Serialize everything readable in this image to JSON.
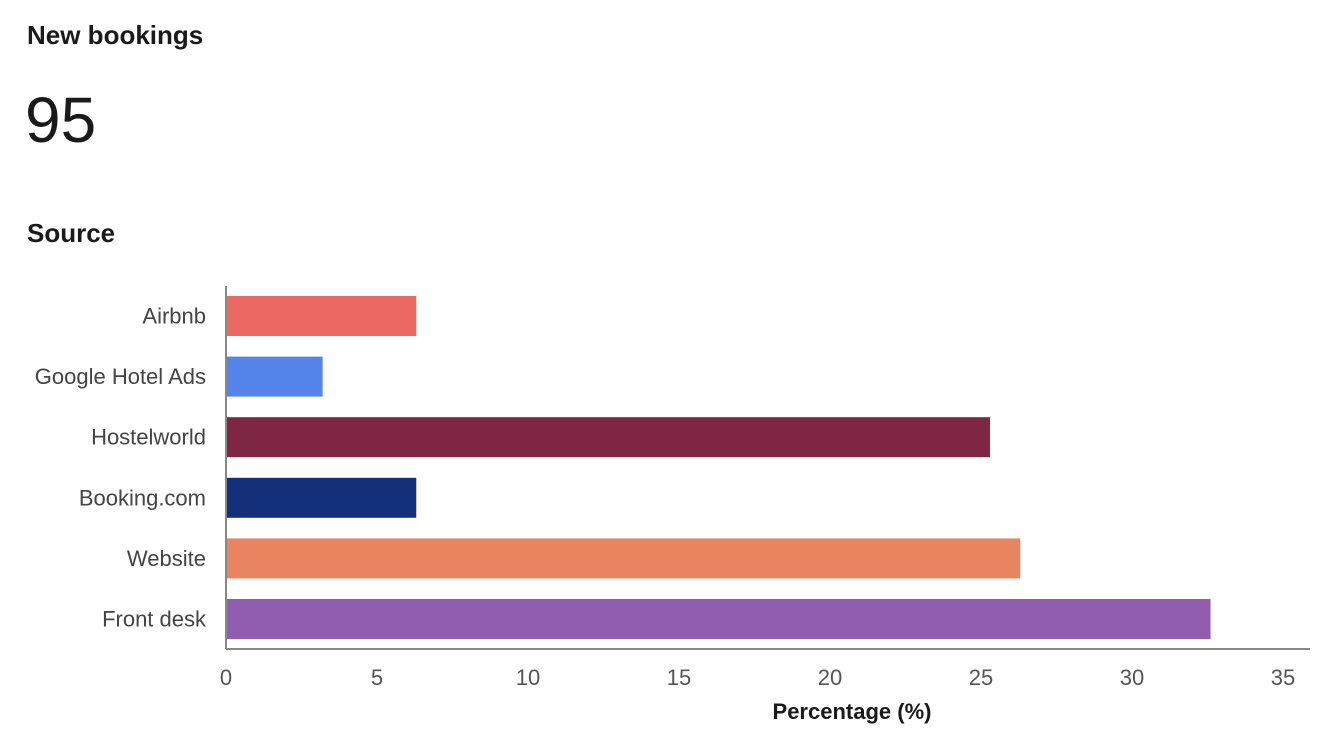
{
  "card": {
    "title": "New bookings",
    "value": "95",
    "section_title": "Source"
  },
  "chart_data": {
    "type": "bar",
    "orientation": "horizontal",
    "categories": [
      "Airbnb",
      "Google Hotel Ads",
      "Hostelworld",
      "Booking.com",
      "Website",
      "Front desk"
    ],
    "values": [
      6.3,
      3.2,
      25.3,
      6.3,
      26.3,
      32.6
    ],
    "colors": [
      "#ec6863",
      "#5585ea",
      "#7f2644",
      "#14307a",
      "#e88460",
      "#915db1"
    ],
    "xlabel": "Percentage (%)",
    "ylabel": "",
    "xlim": [
      0,
      35
    ],
    "xticks": [
      0,
      5,
      10,
      15,
      20,
      25,
      30,
      35
    ],
    "grid": false
  },
  "colors": {
    "axis": "#888888"
  }
}
